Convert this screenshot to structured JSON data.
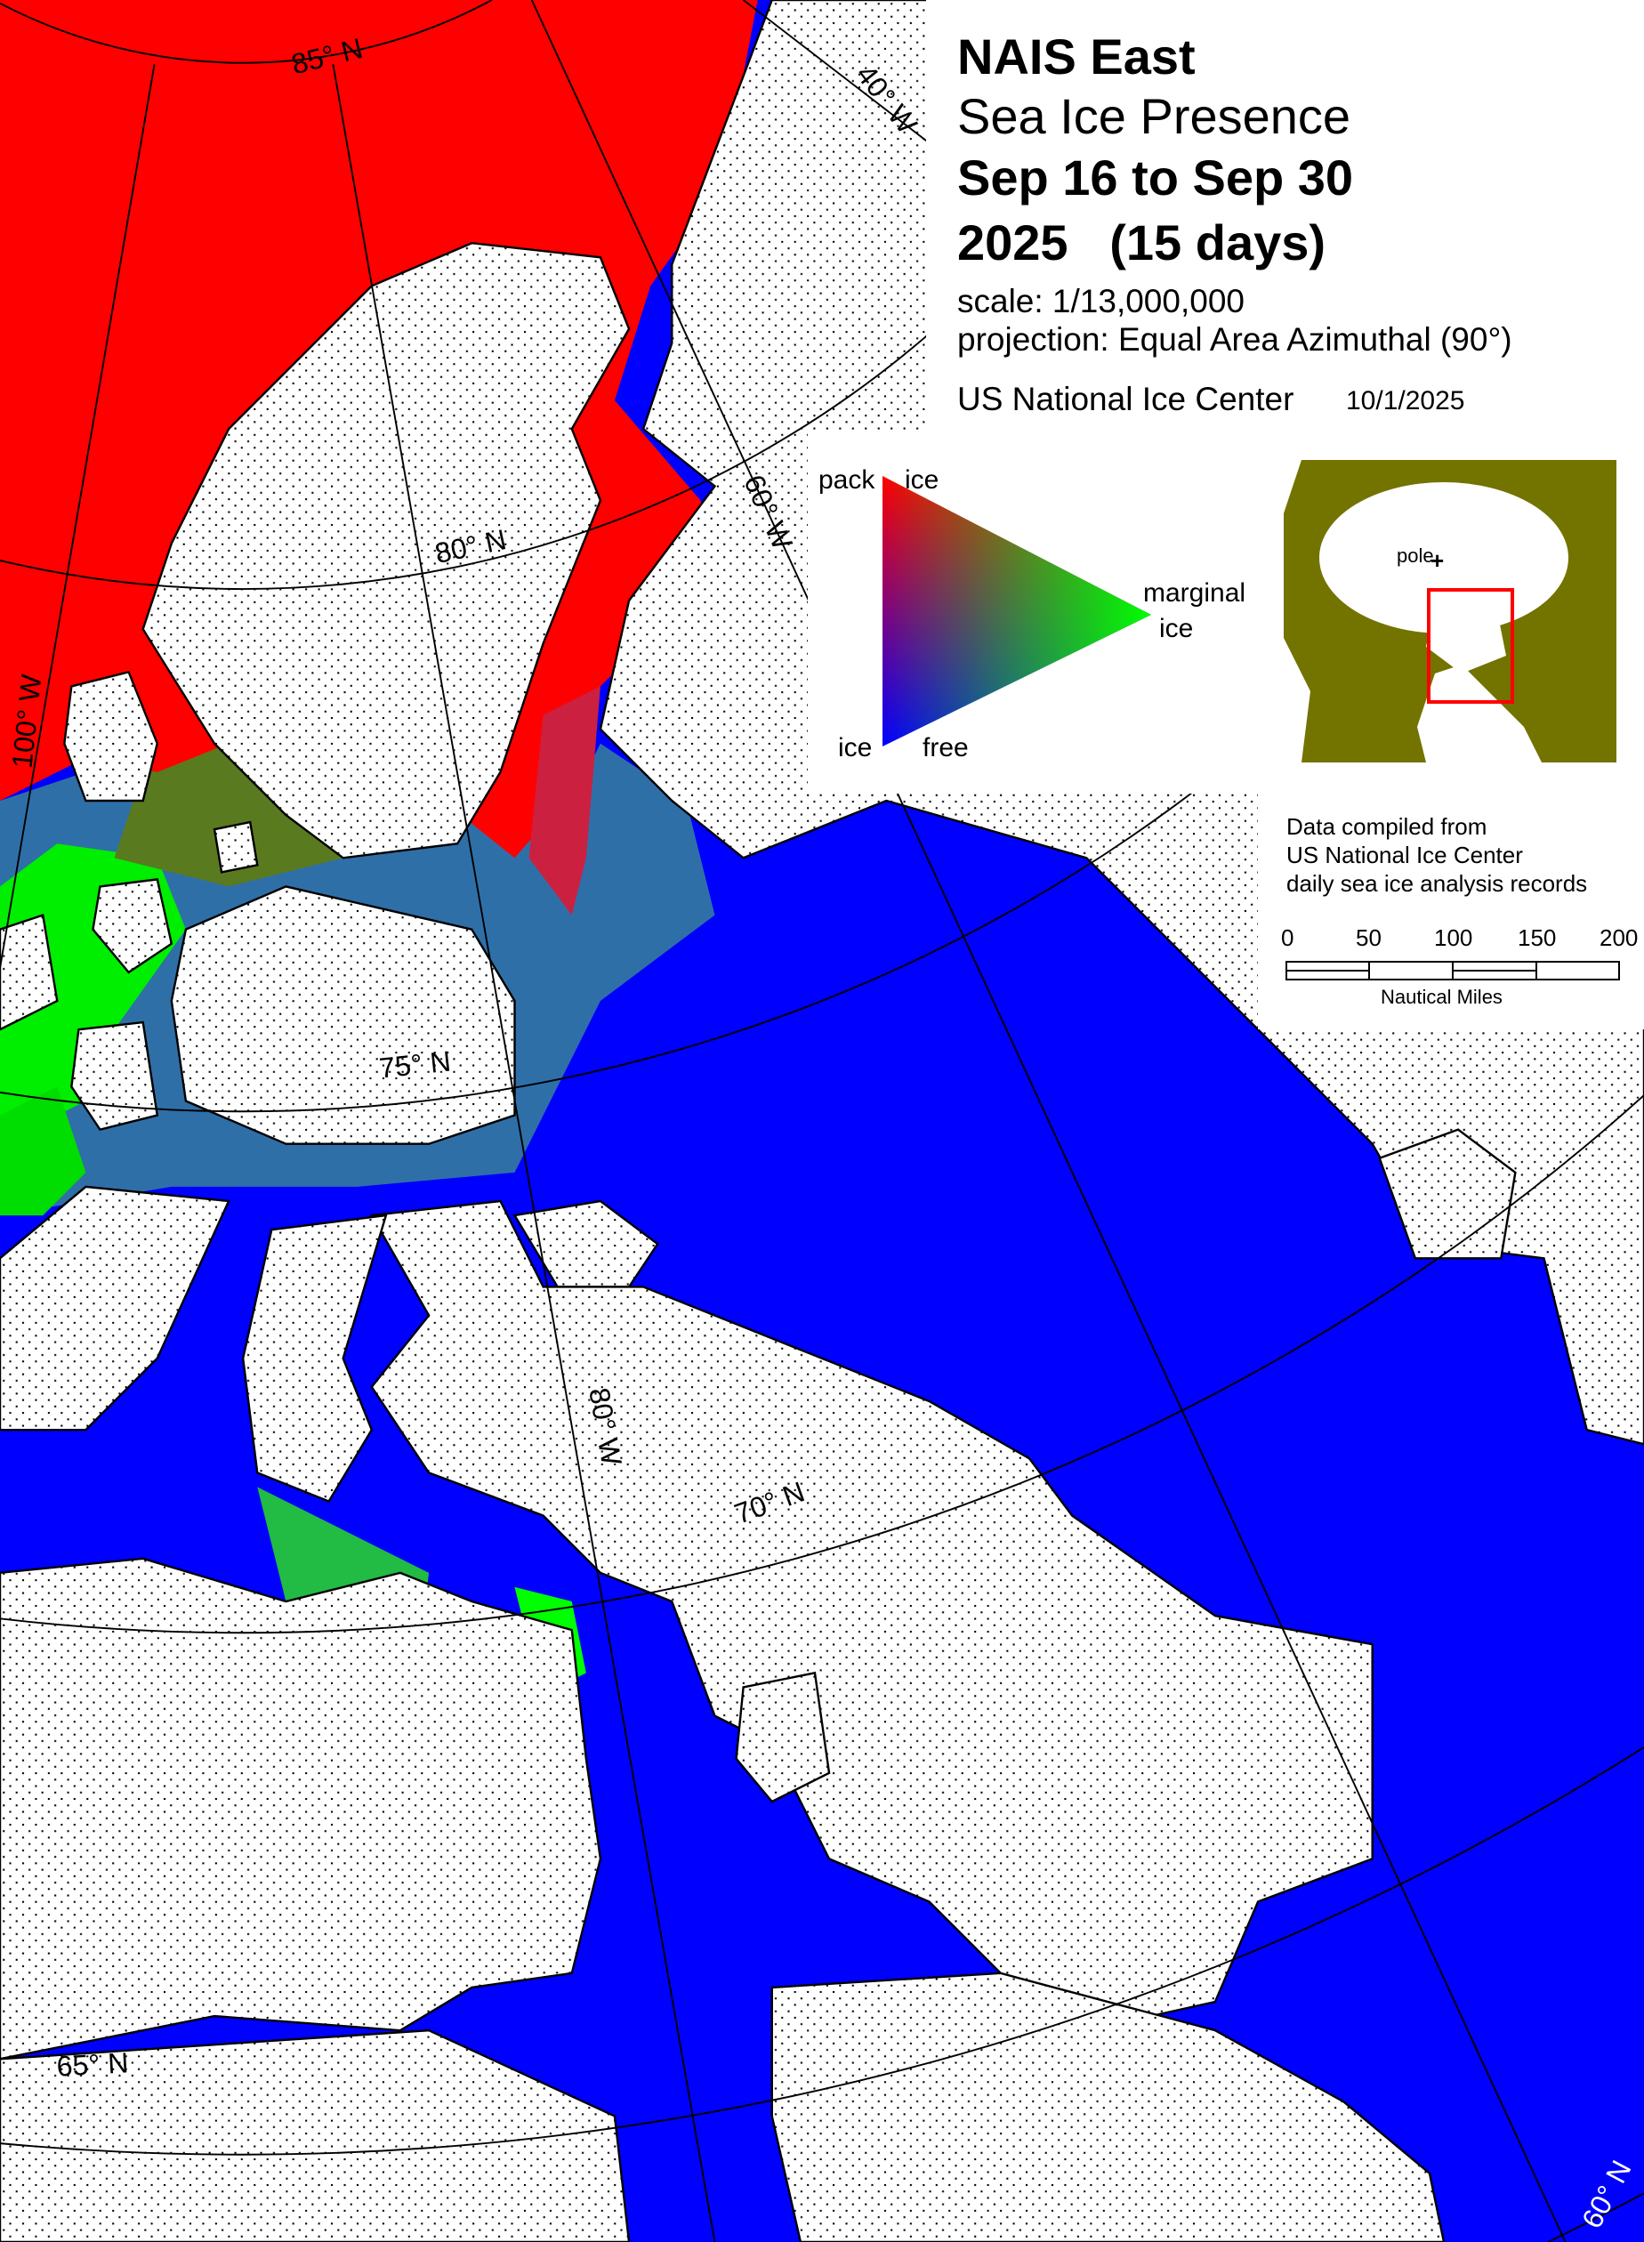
{
  "title": {
    "line1": "NAIS East",
    "line2": "Sea Ice Presence",
    "line3": "Sep 16 to Sep 30",
    "line4": "2025   (15 days)",
    "scale": "scale: 1/13,000,000",
    "projection": "projection: Equal Area Azimuthal (90°)",
    "agency": "US National Ice Center",
    "date": "10/1/2025"
  },
  "legend": {
    "pack": "pack",
    "pack_ice": "ice",
    "marginal": "marginal",
    "marginal_ice": "ice",
    "ice": "ice",
    "free": "free",
    "colors": {
      "pack_ice": "#ff0000",
      "marginal_ice": "#00ff00",
      "ice_free": "#0000ff"
    }
  },
  "inset": {
    "pole_label": "pole",
    "land_color": "#737300",
    "frame_color": "#ff0000"
  },
  "source": {
    "line1": "Data compiled from",
    "line2": "US National Ice Center",
    "line3": "daily sea ice analysis records"
  },
  "scale_bar": {
    "ticks": [
      "0",
      "50",
      "100",
      "150",
      "200"
    ],
    "unit": "Nautical Miles"
  },
  "grid_labels": {
    "lat85": "85° N",
    "lat80": "80° N",
    "lat75": "75° N",
    "lat70": "70° N",
    "lat65": "65° N",
    "lat60": "60° N",
    "lon40": "40° W",
    "lon60": "60° W",
    "lon80": "80° W",
    "lon100": "100° W"
  },
  "map_colors": {
    "ocean_ice_free": "#0000ff",
    "pack_ice": "#ff0000",
    "marginal_ice": "#00ff00",
    "land": "#ffffff"
  }
}
